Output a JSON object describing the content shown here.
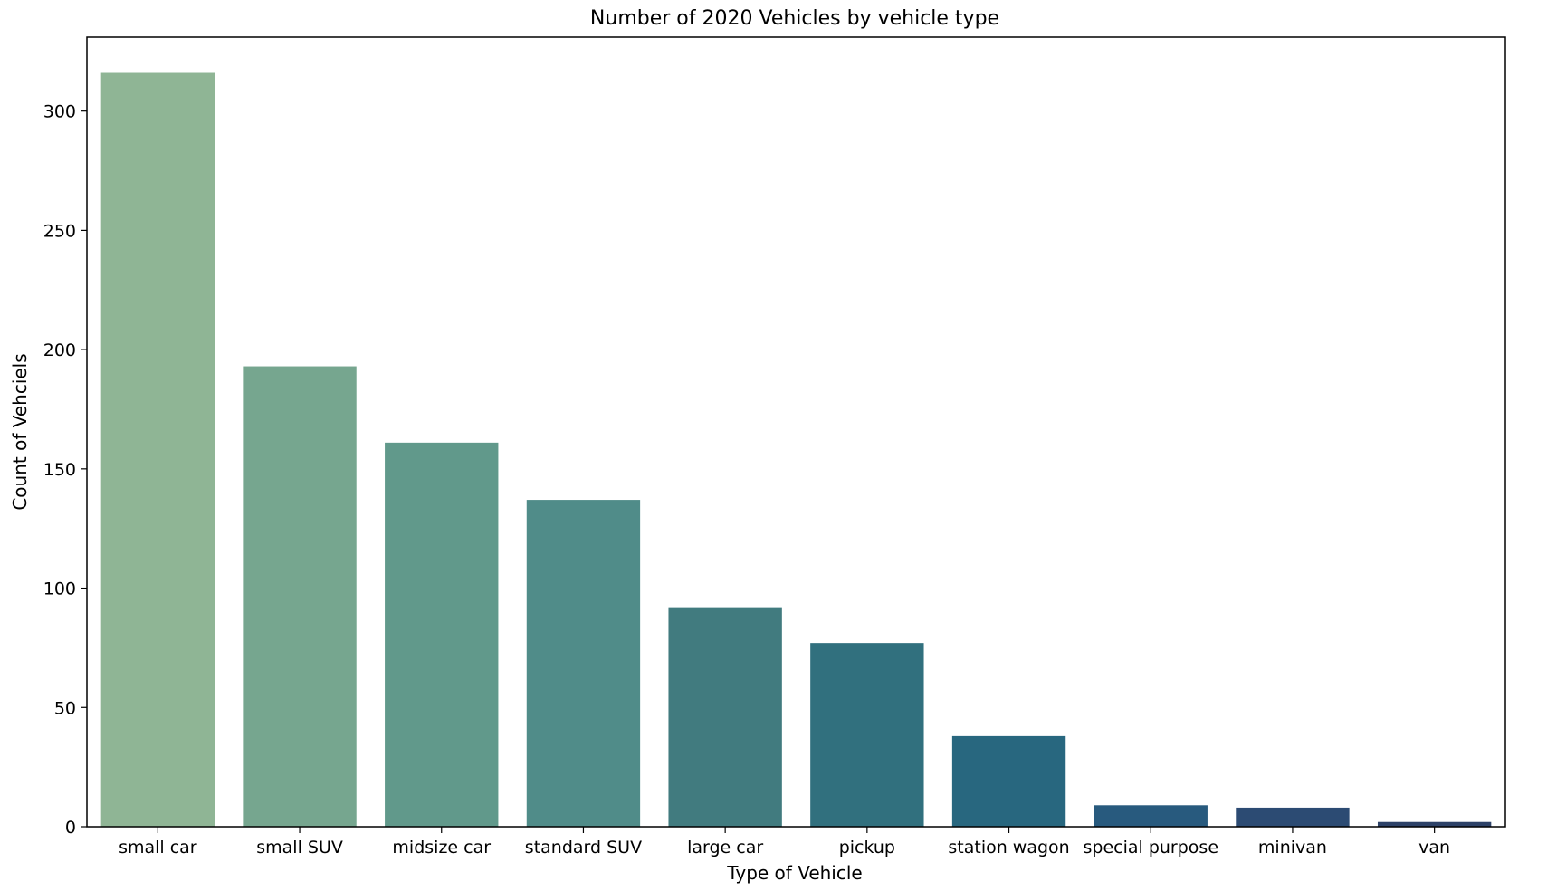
{
  "chart_data": {
    "type": "bar",
    "title": "Number of 2020 Vehicles by vehicle type",
    "xlabel": "Type of Vehicle",
    "ylabel": "Count of Vehciels",
    "categories": [
      "small car",
      "small SUV",
      "midsize car",
      "standard SUV",
      "large car",
      "pickup",
      "station wagon",
      "special purpose",
      "minivan",
      "van"
    ],
    "values": [
      316,
      193,
      161,
      137,
      92,
      77,
      38,
      9,
      8,
      2
    ],
    "ylim": [
      0,
      331
    ],
    "yticks": [
      0,
      50,
      100,
      150,
      200,
      250,
      300
    ],
    "grid": false,
    "legend": "none",
    "colors": [
      "#8fb595",
      "#76a68f",
      "#61998b",
      "#508c89",
      "#417b7f",
      "#31707e",
      "#28677f",
      "#285a7e",
      "#2c4b73",
      "#2d4268"
    ]
  }
}
